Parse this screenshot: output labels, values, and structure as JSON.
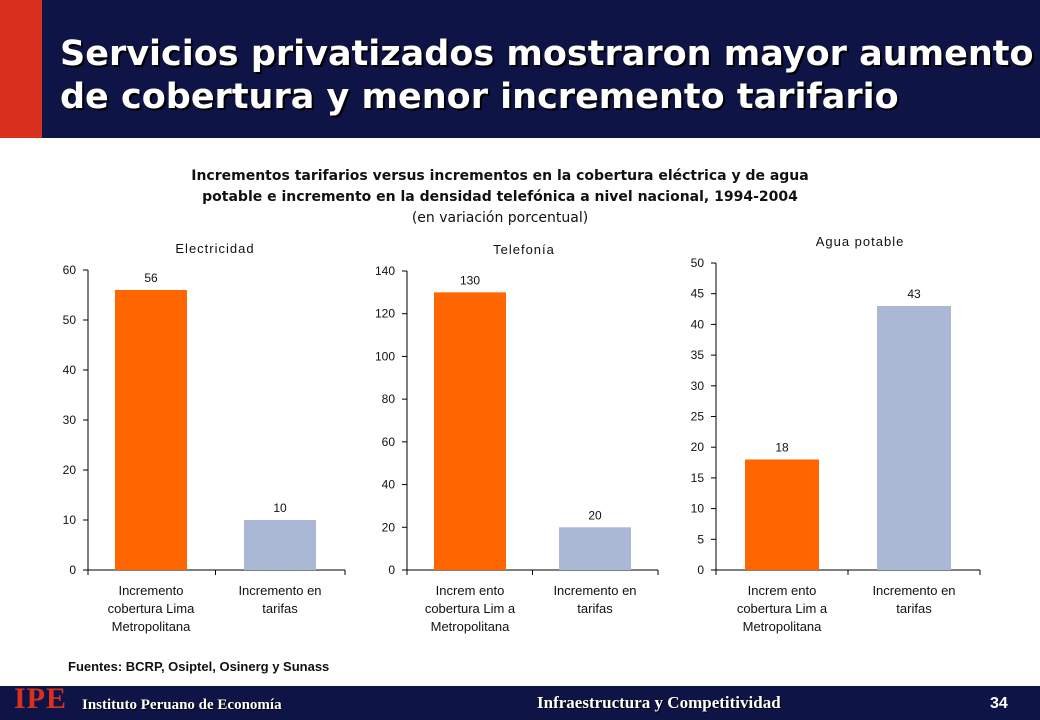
{
  "slide": {
    "title_line1": "Servicios privatizados mostraron mayor aumento",
    "title_line2": "de cobertura y menor incremento tarifario"
  },
  "caption": {
    "line1": "Incrementos tarifarios versus incrementos en la cobertura eléctrica y de agua",
    "line2": "potable e incremento en la densidad telefónica a nivel nacional, 1994-2004",
    "line3": "(en variación porcentual)"
  },
  "source": "Fuentes: BCRP, Osiptel, Osinerg y Sunass",
  "footer": {
    "logo": "IPE",
    "org": "Instituto Peruano de Economía",
    "topic": "Infraestructura y Competitividad",
    "page": "34"
  },
  "colors": {
    "navy": "#0f1446",
    "red": "#d9301f",
    "orange": "#ff6600",
    "lavender": "#aab8d6"
  },
  "chart_data": [
    {
      "type": "bar",
      "title": "Electricidad",
      "categories": [
        [
          "Incremento",
          "cobertura Lima",
          "Metropolitana"
        ],
        [
          "Incremento en",
          "tarifas"
        ]
      ],
      "values": [
        56,
        10
      ],
      "data_labels": [
        "56",
        "10"
      ],
      "colors": [
        "#ff6600",
        "#aab8d6"
      ],
      "ylim": [
        0,
        60
      ],
      "yticks": [
        0,
        10,
        20,
        30,
        40,
        50,
        60
      ],
      "grid": false
    },
    {
      "type": "bar",
      "title": "Telefonía",
      "categories": [
        [
          "Increm ento",
          "cobertura Lim a",
          "Metropolitana"
        ],
        [
          "Incremento en",
          "tarifas"
        ]
      ],
      "values": [
        130,
        20
      ],
      "data_labels": [
        "130",
        "20"
      ],
      "colors": [
        "#ff6600",
        "#aab8d6"
      ],
      "ylim": [
        0,
        140
      ],
      "yticks": [
        0,
        20,
        40,
        60,
        80,
        100,
        120,
        140
      ],
      "grid": false
    },
    {
      "type": "bar",
      "title": "Agua potable",
      "categories": [
        [
          "Increm ento",
          "cobertura Lim a",
          "Metropolitana"
        ],
        [
          "Incremento en",
          "tarifas"
        ]
      ],
      "values": [
        18,
        43
      ],
      "data_labels": [
        "18",
        "43"
      ],
      "colors": [
        "#ff6600",
        "#aab8d6"
      ],
      "ylim": [
        0,
        50
      ],
      "yticks": [
        0,
        5,
        10,
        15,
        20,
        25,
        30,
        35,
        40,
        45,
        50
      ],
      "grid": false
    }
  ]
}
